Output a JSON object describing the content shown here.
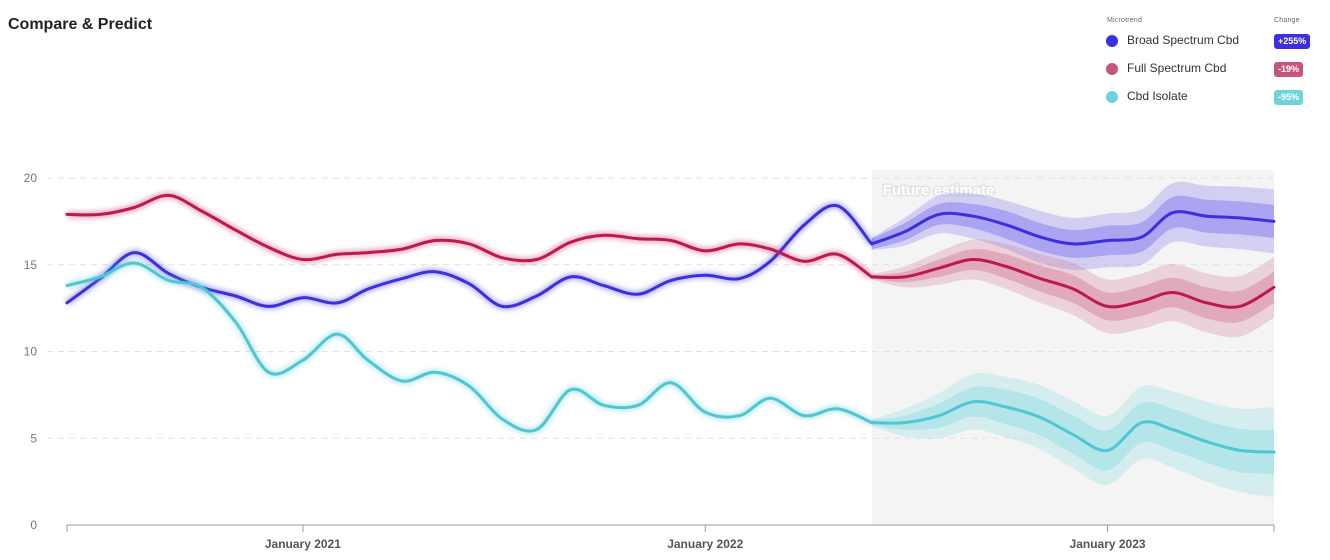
{
  "header": {
    "title": "Compare & Predict"
  },
  "legend": {
    "microtrend_header": "Microtrend",
    "change_header": "Change",
    "items": [
      {
        "label": "Broad Spectrum Cbd",
        "change": "+255%",
        "color": "#3b2fe0"
      },
      {
        "label": "Full Spectrum Cbd",
        "change": "-19%",
        "color": "#c8567a"
      },
      {
        "label": "Cbd Isolate",
        "change": "-95%",
        "color": "#6dd3dc"
      }
    ]
  },
  "chart_data": {
    "type": "line",
    "title": "",
    "xlabel": "",
    "ylabel": "",
    "ylim": [
      0,
      20
    ],
    "yticks": [
      0,
      5,
      10,
      15,
      20
    ],
    "xlim": [
      "2020-06-01",
      "2023-06-01"
    ],
    "xticks": [
      {
        "date": "2021-01-01",
        "label": "January 2021"
      },
      {
        "date": "2022-01-01",
        "label": "January 2022"
      },
      {
        "date": "2023-01-01",
        "label": "January 2023"
      }
    ],
    "grid": true,
    "legend_position": "top-right",
    "future_start": "2022-06-01",
    "future_label": "Future estimate",
    "series": [
      {
        "name": "Broad Spectrum Cbd",
        "color": "#3b2fe0",
        "band_color": "#7b6ef0",
        "x": [
          "2020-06-01",
          "2020-07-01",
          "2020-08-01",
          "2020-09-01",
          "2020-10-01",
          "2020-11-01",
          "2020-12-01",
          "2021-01-01",
          "2021-02-01",
          "2021-03-01",
          "2021-04-01",
          "2021-05-01",
          "2021-06-01",
          "2021-07-01",
          "2021-08-01",
          "2021-09-01",
          "2021-10-01",
          "2021-11-01",
          "2021-12-01",
          "2022-01-01",
          "2022-02-01",
          "2022-03-01",
          "2022-04-01",
          "2022-05-01",
          "2022-06-01"
        ],
        "y": [
          12.8,
          14.2,
          15.7,
          14.5,
          13.7,
          13.2,
          12.6,
          13.1,
          12.8,
          13.6,
          14.2,
          14.6,
          13.9,
          12.6,
          13.2,
          14.3,
          13.8,
          13.3,
          14.1,
          14.4,
          14.2,
          15.2,
          17.3,
          18.4,
          16.2
        ],
        "forecast_x": [
          "2022-06-01",
          "2022-07-01",
          "2022-08-01",
          "2022-09-01",
          "2022-10-01",
          "2022-11-01",
          "2022-12-01",
          "2023-01-01",
          "2023-02-01",
          "2023-03-01",
          "2023-04-01",
          "2023-05-01",
          "2023-06-01"
        ],
        "forecast_y": [
          16.2,
          16.9,
          17.9,
          17.8,
          17.3,
          16.6,
          16.2,
          16.4,
          16.6,
          18.0,
          17.8,
          17.7,
          17.5
        ],
        "forecast_inner": [
          0.3,
          0.5,
          0.6,
          0.7,
          0.8,
          0.8,
          0.8,
          0.85,
          0.85,
          0.9,
          0.95,
          0.95,
          0.95
        ],
        "forecast_outer": [
          0.35,
          0.8,
          1.1,
          1.3,
          1.4,
          1.5,
          1.5,
          1.55,
          1.6,
          1.7,
          1.75,
          1.8,
          1.85
        ]
      },
      {
        "name": "Full Spectrum Cbd",
        "color": "#c0174f",
        "band_color": "#d57a97",
        "x": [
          "2020-06-01",
          "2020-07-01",
          "2020-08-01",
          "2020-09-01",
          "2020-10-01",
          "2020-11-01",
          "2020-12-01",
          "2021-01-01",
          "2021-02-01",
          "2021-03-01",
          "2021-04-01",
          "2021-05-01",
          "2021-06-01",
          "2021-07-01",
          "2021-08-01",
          "2021-09-01",
          "2021-10-01",
          "2021-11-01",
          "2021-12-01",
          "2022-01-01",
          "2022-02-01",
          "2022-03-01",
          "2022-04-01",
          "2022-05-01",
          "2022-06-01"
        ],
        "y": [
          17.9,
          17.9,
          18.3,
          19.0,
          18.1,
          17.0,
          16.0,
          15.3,
          15.6,
          15.7,
          15.9,
          16.4,
          16.2,
          15.4,
          15.3,
          16.3,
          16.7,
          16.5,
          16.4,
          15.8,
          16.2,
          15.9,
          15.2,
          15.6,
          14.3
        ],
        "forecast_x": [
          "2022-06-01",
          "2022-07-01",
          "2022-08-01",
          "2022-09-01",
          "2022-10-01",
          "2022-11-01",
          "2022-12-01",
          "2023-01-01",
          "2023-02-01",
          "2023-03-01",
          "2023-04-01",
          "2023-05-01",
          "2023-06-01"
        ],
        "forecast_y": [
          14.3,
          14.3,
          14.8,
          15.3,
          14.9,
          14.2,
          13.6,
          12.6,
          12.9,
          13.4,
          12.8,
          12.6,
          13.7
        ],
        "forecast_inner": [
          0.1,
          0.3,
          0.5,
          0.6,
          0.7,
          0.75,
          0.8,
          0.8,
          0.85,
          0.85,
          0.9,
          0.9,
          0.9
        ],
        "forecast_outer": [
          0.15,
          0.6,
          0.95,
          1.15,
          1.3,
          1.4,
          1.5,
          1.55,
          1.6,
          1.65,
          1.7,
          1.75,
          1.75
        ]
      },
      {
        "name": "Cbd Isolate",
        "color": "#4fc7d3",
        "band_color": "#8adbe3",
        "x": [
          "2020-06-01",
          "2020-07-01",
          "2020-08-01",
          "2020-09-01",
          "2020-10-01",
          "2020-11-01",
          "2020-12-01",
          "2021-01-01",
          "2021-02-01",
          "2021-03-01",
          "2021-04-01",
          "2021-05-01",
          "2021-06-01",
          "2021-07-01",
          "2021-08-01",
          "2021-09-01",
          "2021-10-01",
          "2021-11-01",
          "2021-12-01",
          "2022-01-01",
          "2022-02-01",
          "2022-03-01",
          "2022-04-01",
          "2022-05-01",
          "2022-06-01"
        ],
        "y": [
          13.8,
          14.3,
          15.1,
          14.1,
          13.7,
          11.7,
          8.8,
          9.5,
          11.0,
          9.5,
          8.3,
          8.8,
          8.0,
          6.1,
          5.5,
          7.8,
          6.9,
          6.9,
          8.2,
          6.5,
          6.3,
          7.3,
          6.3,
          6.7,
          5.9
        ],
        "forecast_x": [
          "2022-06-01",
          "2022-07-01",
          "2022-08-01",
          "2022-09-01",
          "2022-10-01",
          "2022-11-01",
          "2022-12-01",
          "2023-01-01",
          "2023-02-01",
          "2023-03-01",
          "2023-04-01",
          "2023-05-01",
          "2023-06-01"
        ],
        "forecast_y": [
          5.9,
          5.9,
          6.3,
          7.1,
          6.8,
          6.2,
          5.2,
          4.3,
          5.9,
          5.5,
          4.8,
          4.3,
          4.2
        ],
        "forecast_inner": [
          0.15,
          0.4,
          0.7,
          0.85,
          1.0,
          1.05,
          1.1,
          1.15,
          1.15,
          1.2,
          1.2,
          1.25,
          1.25
        ],
        "forecast_outer": [
          0.2,
          0.8,
          1.3,
          1.6,
          1.75,
          1.85,
          1.95,
          2.0,
          2.1,
          2.2,
          2.3,
          2.4,
          2.6
        ]
      }
    ]
  }
}
